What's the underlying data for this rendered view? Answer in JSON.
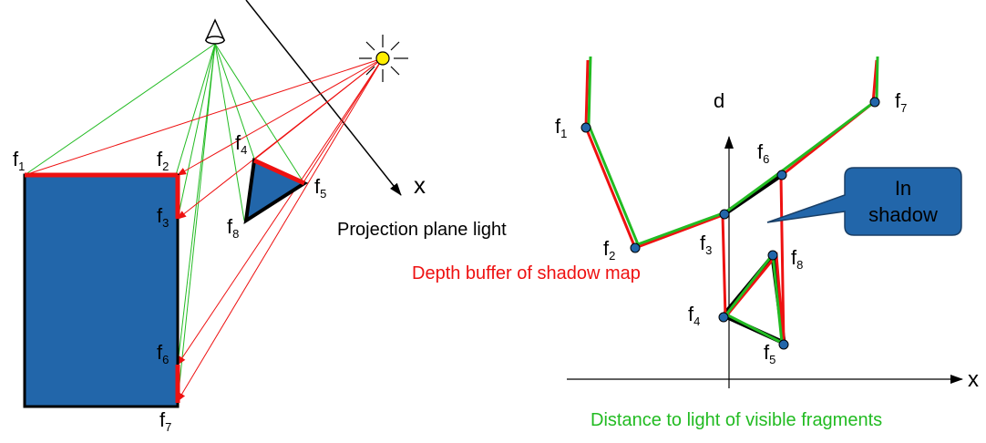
{
  "colors": {
    "fill_blue": "#2266aa",
    "depth_red": "#ee1111",
    "visible_green": "#22bb22",
    "black": "#000000",
    "sun_yellow": "#ffee00"
  },
  "icons": {
    "eye": "eye-cone-icon",
    "light": "sun-light-icon"
  },
  "left": {
    "fragments": [
      {
        "base": "f",
        "sub": "1"
      },
      {
        "base": "f",
        "sub": "2"
      },
      {
        "base": "f",
        "sub": "3"
      },
      {
        "base": "f",
        "sub": "4"
      },
      {
        "base": "f",
        "sub": "5"
      },
      {
        "base": "f",
        "sub": "6"
      },
      {
        "base": "f",
        "sub": "7"
      },
      {
        "base": "f",
        "sub": "8"
      }
    ],
    "axis_label": "x",
    "plane_label": "Projection plane light"
  },
  "right": {
    "axis_d": "d",
    "axis_x": "x",
    "fragments": [
      {
        "base": "f",
        "sub": "1"
      },
      {
        "base": "f",
        "sub": "2"
      },
      {
        "base": "f",
        "sub": "3"
      },
      {
        "base": "f",
        "sub": "4"
      },
      {
        "base": "f",
        "sub": "5"
      },
      {
        "base": "f",
        "sub": "6"
      },
      {
        "base": "f",
        "sub": "7"
      },
      {
        "base": "f",
        "sub": "8"
      }
    ],
    "callout": {
      "line1": "In",
      "line2": "shadow"
    },
    "caption_red": "Depth buffer of shadow map",
    "caption_green": "Distance to light of visible fragments"
  }
}
